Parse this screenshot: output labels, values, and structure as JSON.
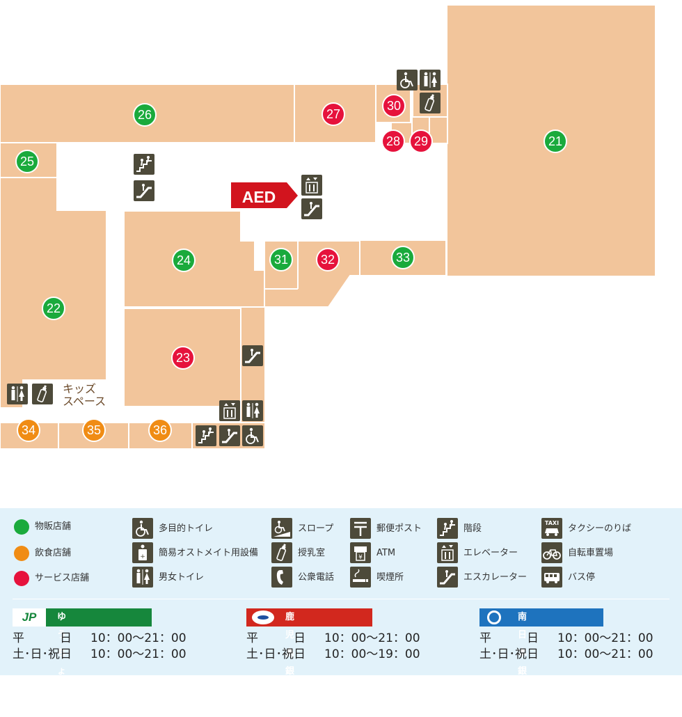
{
  "map": {
    "stores": [
      {
        "id": "21",
        "type": "retail"
      },
      {
        "id": "22",
        "type": "retail"
      },
      {
        "id": "23",
        "type": "service"
      },
      {
        "id": "24",
        "type": "retail"
      },
      {
        "id": "25",
        "type": "retail"
      },
      {
        "id": "26",
        "type": "retail"
      },
      {
        "id": "27",
        "type": "service"
      },
      {
        "id": "28",
        "type": "service"
      },
      {
        "id": "29",
        "type": "service"
      },
      {
        "id": "30",
        "type": "service"
      },
      {
        "id": "31",
        "type": "retail"
      },
      {
        "id": "32",
        "type": "service"
      },
      {
        "id": "33",
        "type": "retail"
      },
      {
        "id": "34",
        "type": "food"
      },
      {
        "id": "35",
        "type": "food"
      },
      {
        "id": "36",
        "type": "food"
      }
    ],
    "aed_label": "AED",
    "kids_space_line1": "キッズ",
    "kids_space_line2": "スペース"
  },
  "colors": {
    "retail": "#1aaa3c",
    "food": "#f08c14",
    "service": "#e6123c",
    "floor": "#f2c59b",
    "icon_bg": "#4d4a3a",
    "aed": "#d2141e",
    "jp_bank": "#16873c",
    "kagoshima_bank": "#d2281e",
    "minaminippon_bank": "#1e73be"
  },
  "legend": {
    "store_types": [
      {
        "label": "物販店舗",
        "color_key": "retail"
      },
      {
        "label": "飲食店舗",
        "color_key": "food"
      },
      {
        "label": "サービス店舗",
        "color_key": "service"
      }
    ],
    "facilities": [
      {
        "icon": "wheelchair-icon",
        "label": "多目的トイレ"
      },
      {
        "icon": "baby-care-icon",
        "label": "簡易オストメイト用設備"
      },
      {
        "icon": "restroom-icon",
        "label": "男女トイレ"
      },
      {
        "icon": "slope-icon",
        "label": "スロープ"
      },
      {
        "icon": "baby-bottle-icon",
        "label": "授乳室"
      },
      {
        "icon": "phone-icon",
        "label": "公衆電話"
      },
      {
        "icon": "post-icon",
        "label": "郵便ポスト"
      },
      {
        "icon": "atm-icon",
        "label": "ATM"
      },
      {
        "icon": "smoking-icon",
        "label": "喫煙所"
      },
      {
        "icon": "stairs-icon",
        "label": "階段"
      },
      {
        "icon": "elevator-icon",
        "label": "エレベーター"
      },
      {
        "icon": "escalator-icon",
        "label": "エスカレーター"
      },
      {
        "icon": "taxi-icon",
        "label": "タクシーのりば"
      },
      {
        "icon": "bicycle-icon",
        "label": "自転車置場"
      },
      {
        "icon": "bus-icon",
        "label": "バス停"
      }
    ]
  },
  "banks": [
    {
      "name": "ゆうちょ銀行",
      "logo": "JP",
      "weekday_label": "平　　　日",
      "weekday_hours": "10：00〜21：00",
      "holiday_label": "土･日･祝日",
      "holiday_hours": "10：00〜21：00"
    },
    {
      "name": "鹿児島銀行",
      "weekday_label": "平　　　日",
      "weekday_hours": "10：00〜21：00",
      "holiday_label": "土･日･祝日",
      "holiday_hours": "10：00〜19：00"
    },
    {
      "name": "南日本銀行",
      "weekday_label": "平　　　日",
      "weekday_hours": "10：00〜21：00",
      "holiday_label": "土･日･祝日",
      "holiday_hours": "10：00〜21：00"
    }
  ]
}
